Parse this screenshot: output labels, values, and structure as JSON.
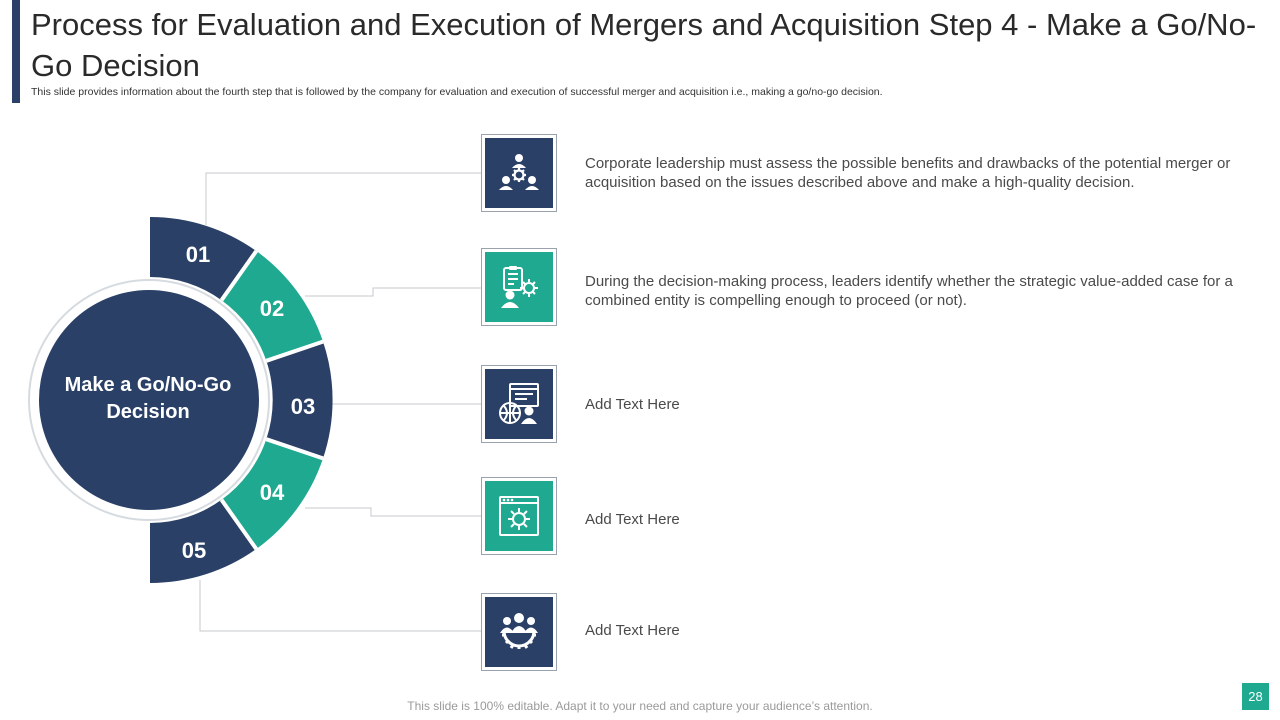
{
  "header": {
    "title": "Process for Evaluation and Execution of Mergers and Acquisition Step 4 - Make a Go/No-Go Decision",
    "subtitle": "This slide provides information about the fourth step that is followed by the company for evaluation and execution of successful merger and acquisition i.e., making a go/no-go decision."
  },
  "center": {
    "label": "Make a Go/No-Go Decision"
  },
  "steps": [
    {
      "number": "01",
      "color": "#2a4066",
      "icon": "team-gear-icon",
      "text": "Corporate leadership must assess the possible benefits and drawbacks of the potential merger or acquisition based on the issues described above and make a high-quality  decision."
    },
    {
      "number": "02",
      "color": "#1fa991",
      "icon": "clipboard-person-gear-icon",
      "text": "During the decision-making process, leaders identify whether the strategic value-added case for a combined entity is compelling enough to proceed (or not)."
    },
    {
      "number": "03",
      "color": "#2a4066",
      "icon": "web-globe-user-icon",
      "text": "Add Text Here"
    },
    {
      "number": "04",
      "color": "#1fa991",
      "icon": "browser-settings-icon",
      "text": "Add Text Here"
    },
    {
      "number": "05",
      "color": "#2a4066",
      "icon": "people-gear-icon",
      "text": "Add Text Here"
    }
  ],
  "footer": {
    "note": "This slide is 100% editable. Adapt it to your need and capture your audience’s attention.",
    "page": "28"
  },
  "colors": {
    "navy": "#2a4066",
    "teal": "#1fa991"
  }
}
